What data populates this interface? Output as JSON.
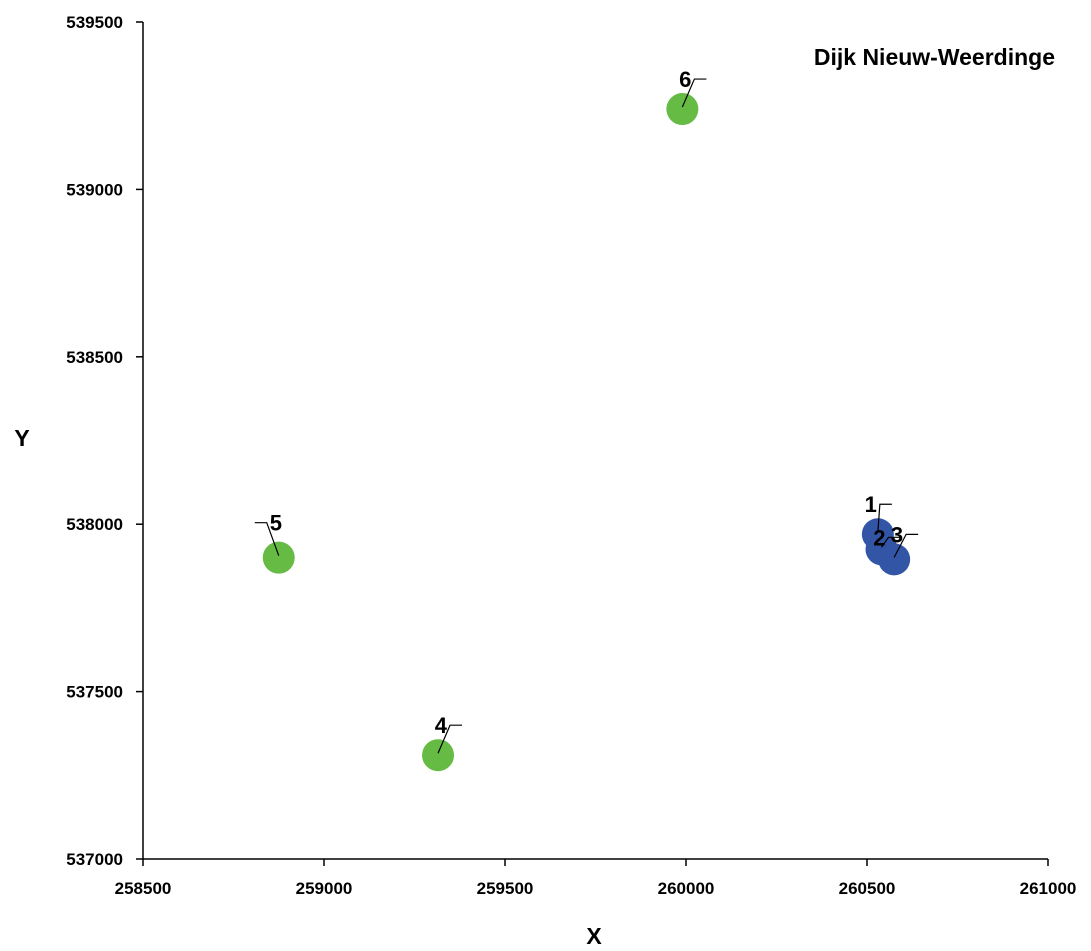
{
  "chart_data": {
    "type": "scatter",
    "title": "Dijk Nieuw-Weerdinge",
    "xlabel": "X",
    "ylabel": "Y",
    "xlim": [
      258500,
      261000
    ],
    "ylim": [
      537000,
      539500
    ],
    "x_ticks": [
      258500,
      259000,
      259500,
      260000,
      260500,
      261000
    ],
    "y_ticks": [
      537000,
      537500,
      538000,
      538500,
      539000,
      539500
    ],
    "x_tick_labels": [
      "258500",
      "259000",
      "259500",
      "260000",
      "260500",
      "261000"
    ],
    "y_tick_labels": [
      "537000",
      "537500",
      "538000",
      "538500",
      "539000",
      "539500"
    ],
    "grid": false,
    "legend": "none",
    "series": [
      {
        "color": "#3355a5",
        "points": [
          {
            "label": "1",
            "x": 260530,
            "y": 537970
          },
          {
            "label": "2",
            "x": 260540,
            "y": 537925
          },
          {
            "label": "3",
            "x": 260575,
            "y": 537895
          }
        ]
      },
      {
        "color": "#66bb44",
        "points": [
          {
            "label": "4",
            "x": 259315,
            "y": 537310
          },
          {
            "label": "5",
            "x": 258875,
            "y": 537900
          },
          {
            "label": "6",
            "x": 259990,
            "y": 539240
          }
        ]
      }
    ]
  }
}
